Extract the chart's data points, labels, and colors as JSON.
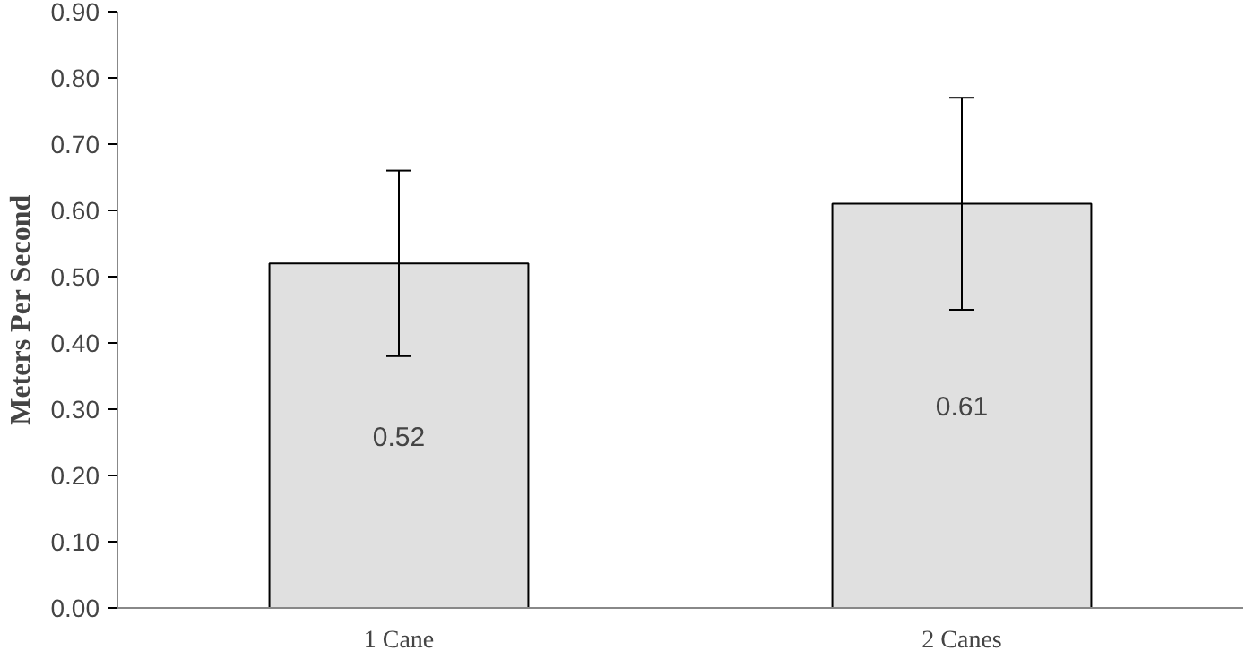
{
  "chart_data": {
    "type": "bar",
    "ylabel": "Meters Per Second",
    "categories": [
      "1 Cane",
      "2 Canes"
    ],
    "values": [
      0.52,
      0.61
    ],
    "errors": [
      0.14,
      0.16
    ],
    "color": "#e0e0e0",
    "data_labels": true,
    "ylim": [
      0,
      0.9
    ],
    "yticks": [
      {
        "value": 0,
        "label": "0.00"
      },
      {
        "value": 0.1,
        "label": "0.10"
      },
      {
        "value": 0.2,
        "label": "0.20"
      },
      {
        "value": 0.3,
        "label": "0.30"
      },
      {
        "value": 0.4,
        "label": "0.40"
      },
      {
        "value": 0.5,
        "label": "0.50"
      },
      {
        "value": 0.6,
        "label": "0.60"
      },
      {
        "value": 0.7,
        "label": "0.70"
      },
      {
        "value": 0.8,
        "label": "0.80"
      },
      {
        "value": 0.9,
        "label": "0.90"
      }
    ],
    "grid": false
  }
}
